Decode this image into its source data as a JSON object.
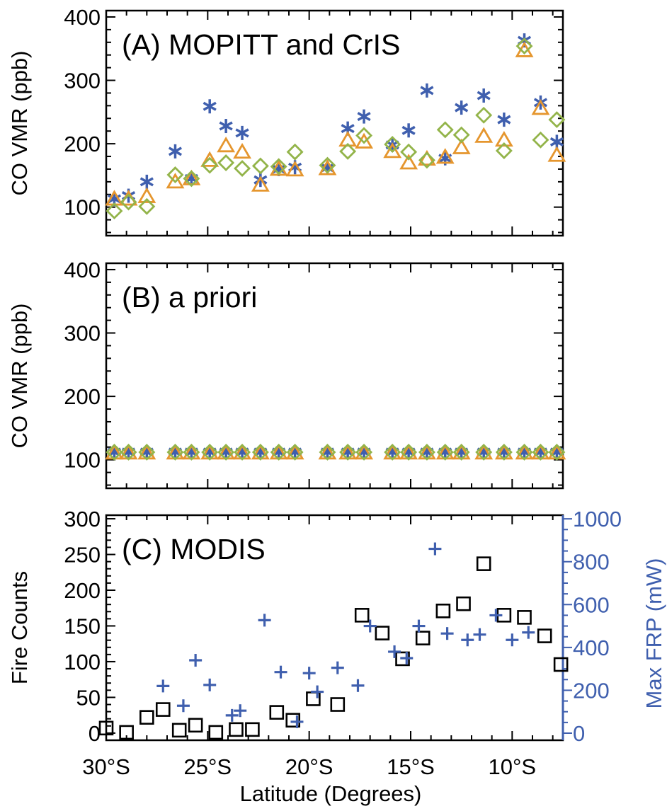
{
  "colors": {
    "mopitt": "#3f5fae",
    "cris_a": "#e5962e",
    "cris_b": "#93b44a",
    "modis_fire": "#000000",
    "modis_frp": "#3f5fae"
  },
  "xaxis": {
    "label": "Latitude (Degrees)",
    "ticks": [
      {
        "value": -30,
        "label": "30°S"
      },
      {
        "value": -25,
        "label": "25°S"
      },
      {
        "value": -20,
        "label": "20°S"
      },
      {
        "value": -15,
        "label": "15°S"
      },
      {
        "value": -10,
        "label": "10°S"
      }
    ],
    "xlim": [
      -30,
      -7.5
    ]
  },
  "panels": [
    {
      "label": "(A) MOPITT and CrIS",
      "ylabel": "CO VMR (ppb)",
      "ylim": [
        55,
        410
      ],
      "yticks": [
        "100",
        "200",
        "300",
        "400"
      ]
    },
    {
      "label": "(B) a priori",
      "ylabel": "CO VMR (ppb)",
      "ylim": [
        55,
        410
      ],
      "yticks": [
        "100",
        "200",
        "300",
        "400"
      ]
    },
    {
      "label": "(C) MODIS",
      "ylabel": "Fire Counts",
      "ylabel_right": "Max FRP (mW)",
      "ylim": [
        -10,
        305
      ],
      "ylim_right": [
        -33,
        1017
      ],
      "yticks": [
        "0",
        "50",
        "100",
        "150",
        "200",
        "250",
        "300"
      ],
      "yticks_right": [
        "0",
        "200",
        "400",
        "600",
        "800",
        "1000"
      ]
    }
  ],
  "chart_data": [
    {
      "type": "scatter",
      "title": "(A) MOPITT and CrIS",
      "ylabel": "CO VMR (ppb)",
      "ylim": [
        55,
        410
      ],
      "series": [
        {
          "marker": "asterisk",
          "color": "#3f5fae",
          "x": [
            -29.6,
            -28.9,
            -28.0,
            -26.6,
            -25.8,
            -24.9,
            -24.1,
            -23.3,
            -22.4,
            -21.5,
            -20.7,
            -19.1,
            -18.1,
            -17.3,
            -15.9,
            -15.1,
            -14.2,
            -13.3,
            -12.5,
            -11.4,
            -10.4,
            -9.4,
            -8.6,
            -7.8
          ],
          "y": [
            113,
            118,
            140,
            188,
            145,
            259,
            228,
            217,
            143,
            160,
            163,
            162,
            224,
            243,
            198,
            221,
            284,
            177,
            257,
            276,
            238,
            363,
            265,
            203
          ]
        },
        {
          "marker": "triangle",
          "color": "#e5962e",
          "x": [
            -29.6,
            -28.9,
            -28.0,
            -26.6,
            -25.8,
            -24.9,
            -24.1,
            -23.3,
            -22.4,
            -21.5,
            -20.7,
            -19.1,
            -18.1,
            -17.3,
            -15.9,
            -15.1,
            -14.2,
            -13.3,
            -12.5,
            -11.4,
            -10.4,
            -9.4,
            -8.6,
            -7.8
          ],
          "y": [
            113,
            113,
            117,
            140,
            145,
            174,
            197,
            187,
            135,
            160,
            159,
            161,
            206,
            203,
            188,
            170,
            176,
            179,
            194,
            212,
            206,
            347,
            256,
            182
          ]
        },
        {
          "marker": "diamond",
          "color": "#93b44a",
          "x": [
            -29.6,
            -28.9,
            -28.0,
            -26.6,
            -25.8,
            -24.9,
            -24.1,
            -23.3,
            -22.4,
            -21.5,
            -20.7,
            -19.1,
            -18.1,
            -17.3,
            -15.9,
            -15.1,
            -14.2,
            -13.3,
            -12.5,
            -11.4,
            -10.4,
            -9.4,
            -8.6,
            -7.8
          ],
          "y": [
            94,
            108,
            101,
            151,
            145,
            166,
            170,
            161,
            165,
            164,
            187,
            166,
            188,
            213,
            199,
            187,
            174,
            222,
            214,
            245,
            189,
            354,
            206,
            238
          ]
        }
      ]
    },
    {
      "type": "scatter",
      "title": "(B) a priori",
      "ylabel": "CO VMR (ppb)",
      "ylim": [
        55,
        410
      ],
      "series": [
        {
          "marker": "asterisk",
          "color": "#3f5fae",
          "x": [
            -29.6,
            -28.9,
            -28.0,
            -26.6,
            -25.8,
            -24.9,
            -24.1,
            -23.3,
            -22.4,
            -21.5,
            -20.7,
            -19.1,
            -18.1,
            -17.3,
            -15.9,
            -15.1,
            -14.2,
            -13.3,
            -12.5,
            -11.4,
            -10.4,
            -9.4,
            -8.6,
            -7.8
          ],
          "y": [
            112,
            112,
            112,
            112,
            112,
            112,
            112,
            112,
            112,
            112,
            112,
            112,
            112,
            112,
            112,
            112,
            112,
            112,
            112,
            112,
            112,
            112,
            112,
            112
          ]
        },
        {
          "marker": "triangle",
          "color": "#e5962e",
          "x": [
            -29.6,
            -28.9,
            -28.0,
            -26.6,
            -25.8,
            -24.9,
            -24.1,
            -23.3,
            -22.4,
            -21.5,
            -20.7,
            -19.1,
            -18.1,
            -17.3,
            -15.9,
            -15.1,
            -14.2,
            -13.3,
            -12.5,
            -11.4,
            -10.4,
            -9.4,
            -8.6,
            -7.8
          ],
          "y": [
            111,
            111,
            111,
            111,
            111,
            111,
            111,
            111,
            111,
            111,
            111,
            111,
            111,
            111,
            111,
            111,
            111,
            111,
            111,
            111,
            111,
            111,
            111,
            111
          ]
        },
        {
          "marker": "diamond",
          "color": "#93b44a",
          "x": [
            -29.6,
            -28.9,
            -28.0,
            -26.6,
            -25.8,
            -24.9,
            -24.1,
            -23.3,
            -22.4,
            -21.5,
            -20.7,
            -19.1,
            -18.1,
            -17.3,
            -15.9,
            -15.1,
            -14.2,
            -13.3,
            -12.5,
            -11.4,
            -10.4,
            -9.4,
            -8.6,
            -7.8
          ],
          "y": [
            112,
            112,
            112,
            112,
            112,
            112,
            112,
            112,
            112,
            112,
            112,
            112,
            112,
            112,
            112,
            112,
            112,
            112,
            112,
            112,
            112,
            112,
            112,
            112
          ]
        }
      ]
    },
    {
      "type": "scatter",
      "title": "(C) MODIS",
      "ylabel": "Fire Counts",
      "ylabel_right": "Max FRP (mW)",
      "ylim": [
        -10,
        305
      ],
      "ylim_right": [
        -33,
        1017
      ],
      "series": [
        {
          "marker": "square",
          "color": "#000000",
          "axis": "left",
          "x": [
            -30.0,
            -29.0,
            -28.0,
            -27.2,
            -26.4,
            -25.6,
            -24.6,
            -23.6,
            -22.8,
            -21.6,
            -20.8,
            -19.8,
            -18.6,
            -17.4,
            -16.4,
            -15.4,
            -14.4,
            -13.4,
            -12.4,
            -11.4,
            -10.4,
            -9.4,
            -8.4,
            -7.6
          ],
          "y": [
            7,
            1,
            22,
            33,
            4,
            11,
            1,
            5,
            5,
            29,
            18,
            48,
            40,
            165,
            140,
            104,
            133,
            171,
            181,
            237,
            165,
            162,
            136,
            96
          ]
        },
        {
          "marker": "plus",
          "color": "#3f5fae",
          "axis": "right",
          "x": [
            -27.2,
            -26.2,
            -25.6,
            -24.9,
            -23.8,
            -23.4,
            -22.2,
            -21.4,
            -20.6,
            -20.0,
            -19.6,
            -18.6,
            -17.6,
            -17.0,
            -15.8,
            -15.2,
            -14.6,
            -13.8,
            -13.2,
            -12.2,
            -11.6,
            -10.8,
            -10.0,
            -9.2
          ],
          "y": [
            220,
            128,
            340,
            225,
            83,
            105,
            527,
            285,
            53,
            280,
            193,
            305,
            222,
            500,
            380,
            350,
            500,
            860,
            465,
            435,
            460,
            550,
            435,
            470
          ]
        }
      ]
    }
  ]
}
